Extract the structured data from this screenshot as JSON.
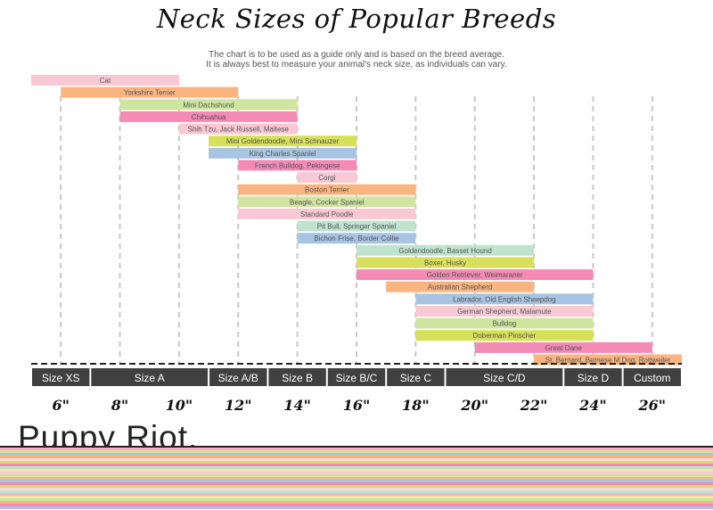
{
  "header": {
    "title": "Neck Sizes of Popular Breeds",
    "subtitle_line1": "The chart is to be used as a guide only and is based on the breed average.",
    "subtitle_line2": "It is always best to measure your animal's neck size, as individuals can vary."
  },
  "brand": {
    "name": "Puppy Riot."
  },
  "colors": {
    "pink_light": "#f8c8d4",
    "orange": "#f9b47f",
    "green": "#cfe59f",
    "pink": "#f38bb5",
    "yellow": "#d6e05a",
    "blue": "#a7c4e2",
    "mint": "#bfe3cf",
    "size_bar": "#404040"
  },
  "chart_data": {
    "type": "range-bar",
    "x_unit": "inches",
    "xlim": [
      5,
      27
    ],
    "x_ticks": [
      {
        "value": 6,
        "label": "6\""
      },
      {
        "value": 8,
        "label": "8\""
      },
      {
        "value": 10,
        "label": "10\""
      },
      {
        "value": 12,
        "label": "12\""
      },
      {
        "value": 14,
        "label": "14\""
      },
      {
        "value": 16,
        "label": "16\""
      },
      {
        "value": 18,
        "label": "18\""
      },
      {
        "value": 20,
        "label": "20\""
      },
      {
        "value": 22,
        "label": "22\""
      },
      {
        "value": 24,
        "label": "24\""
      },
      {
        "value": 26,
        "label": "26\""
      }
    ],
    "grid_lines": [
      6,
      8,
      10,
      12,
      14,
      16,
      18,
      20,
      22,
      24,
      26
    ],
    "sizes": [
      {
        "label": "Size XS",
        "start": 5,
        "end": 7
      },
      {
        "label": "Size A",
        "start": 7,
        "end": 11
      },
      {
        "label": "Size A/B",
        "start": 11,
        "end": 13
      },
      {
        "label": "Size B",
        "start": 13,
        "end": 15
      },
      {
        "label": "Size B/C",
        "start": 15,
        "end": 17
      },
      {
        "label": "Size C",
        "start": 17,
        "end": 19
      },
      {
        "label": "Size C/D",
        "start": 19,
        "end": 23
      },
      {
        "label": "Size D",
        "start": 23,
        "end": 25
      },
      {
        "label": "Custom",
        "start": 25,
        "end": 27
      }
    ],
    "breeds": [
      {
        "label": "Cat",
        "start": 5,
        "end": 10,
        "color": "pink_light"
      },
      {
        "label": "Yorkshire Terrier",
        "start": 6,
        "end": 12,
        "color": "orange"
      },
      {
        "label": "Mini Dachshund",
        "start": 8,
        "end": 14,
        "color": "green"
      },
      {
        "label": "Chihuahua",
        "start": 8,
        "end": 14,
        "color": "pink"
      },
      {
        "label": "Shih Tzu, Jack Russell, Maltese",
        "start": 10,
        "end": 14,
        "color": "pink_light"
      },
      {
        "label": "Mini Goldendoodle, Mini Schnauzer",
        "start": 11,
        "end": 16,
        "color": "yellow"
      },
      {
        "label": "King Charles Spaniel",
        "start": 11,
        "end": 16,
        "color": "blue"
      },
      {
        "label": "French Bulldog, Pekingese",
        "start": 12,
        "end": 16,
        "color": "pink"
      },
      {
        "label": "Corgi",
        "start": 14,
        "end": 16,
        "color": "pink_light"
      },
      {
        "label": "Boston Terrier",
        "start": 12,
        "end": 18,
        "color": "orange"
      },
      {
        "label": "Beagle, Cocker Spaniel",
        "start": 12,
        "end": 18,
        "color": "green"
      },
      {
        "label": "Standard Poodle",
        "start": 12,
        "end": 18,
        "color": "pink_light"
      },
      {
        "label": "Pit Bull, Springer Spaniel",
        "start": 14,
        "end": 18,
        "color": "mint"
      },
      {
        "label": "Bichon Frise, Border Collie",
        "start": 14,
        "end": 18,
        "color": "blue"
      },
      {
        "label": "Goldendoodle, Basset Hound",
        "start": 16,
        "end": 22,
        "color": "mint"
      },
      {
        "label": "Boxer, Husky",
        "start": 16,
        "end": 22,
        "color": "yellow"
      },
      {
        "label": "Golden Retriever, Weimaraner",
        "start": 16,
        "end": 24,
        "color": "pink"
      },
      {
        "label": "Australian Shepherd",
        "start": 17,
        "end": 22,
        "color": "orange"
      },
      {
        "label": "Labrador, Old English Sheepdog",
        "start": 18,
        "end": 24,
        "color": "blue"
      },
      {
        "label": "German Shepherd, Malamute",
        "start": 18,
        "end": 24,
        "color": "pink_light"
      },
      {
        "label": "Bulldog",
        "start": 18,
        "end": 24,
        "color": "green"
      },
      {
        "label": "Doberman Pinscher",
        "start": 18,
        "end": 24,
        "color": "yellow"
      },
      {
        "label": "Great Dane",
        "start": 20,
        "end": 26,
        "color": "pink"
      },
      {
        "label": "St. Bernard, Bernese M Dog, Rottweiler",
        "start": 22,
        "end": 27,
        "color": "orange"
      }
    ]
  },
  "stripe_colors": [
    "#222222",
    "#f7b0c8",
    "#cfe59f",
    "#a7c4e2",
    "#f9b47f",
    "#f8d9e0",
    "#d6e05a",
    "#f38bb5",
    "#bfe3cf",
    "#fbe4a6",
    "#f8c8d4",
    "#cfe59f",
    "#f9b47f",
    "#a7c4e2",
    "#f38bb5",
    "#d6e05a",
    "#f8d9e0",
    "#bfe3cf",
    "#f7b0c8",
    "#fbe4a6",
    "#cfe59f",
    "#f9b47f",
    "#f38bb5",
    "#a7c4e2"
  ]
}
